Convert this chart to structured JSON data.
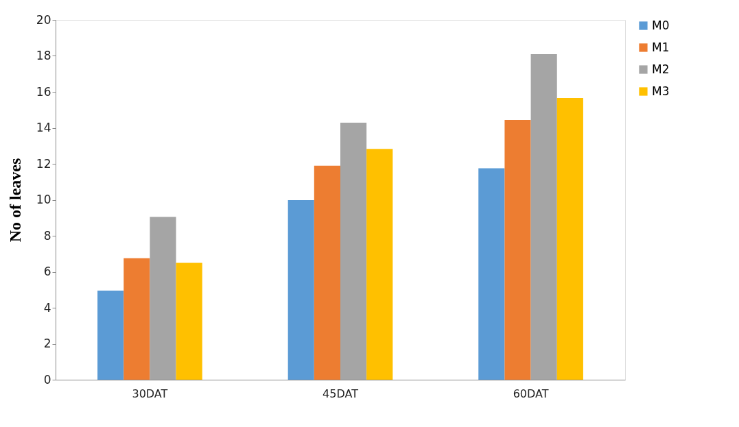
{
  "chart_data": {
    "type": "bar",
    "ylabel": "No of leaves",
    "categories": [
      "30DAT",
      "45DAT",
      "60DAT"
    ],
    "series": [
      {
        "name": "M0",
        "color": "#5b9bd5",
        "values": [
          4.95,
          9.98,
          11.75
        ]
      },
      {
        "name": "M1",
        "color": "#ed7d31",
        "values": [
          6.75,
          11.9,
          14.44
        ]
      },
      {
        "name": "M2",
        "color": "#a5a5a5",
        "values": [
          9.05,
          14.29,
          18.1
        ]
      },
      {
        "name": "M3",
        "color": "#ffc000",
        "values": [
          6.5,
          12.83,
          15.66
        ]
      }
    ],
    "ylim": [
      0,
      20
    ],
    "yticks": [
      0,
      2,
      4,
      6,
      8,
      10,
      12,
      14,
      16,
      18,
      20
    ],
    "grid": false,
    "legend": "right"
  }
}
